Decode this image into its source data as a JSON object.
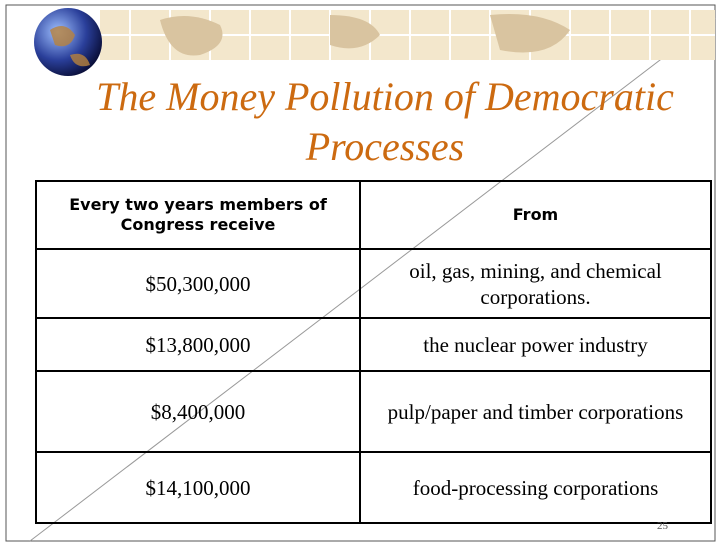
{
  "header": {
    "title": "The Money Pollution of Democratic Processes"
  },
  "table": {
    "headers": [
      "Every two years members of Congress receive",
      "From"
    ],
    "rows": [
      [
        "$50,300,000",
        "oil, gas, mining, and chemical corporations."
      ],
      [
        "$13,800,000",
        "the nuclear power industry"
      ],
      [
        "$8,400,000",
        "pulp/paper and timber corporations"
      ],
      [
        "$14,100,000",
        "food-processing corporations"
      ]
    ]
  },
  "page_number": "25"
}
